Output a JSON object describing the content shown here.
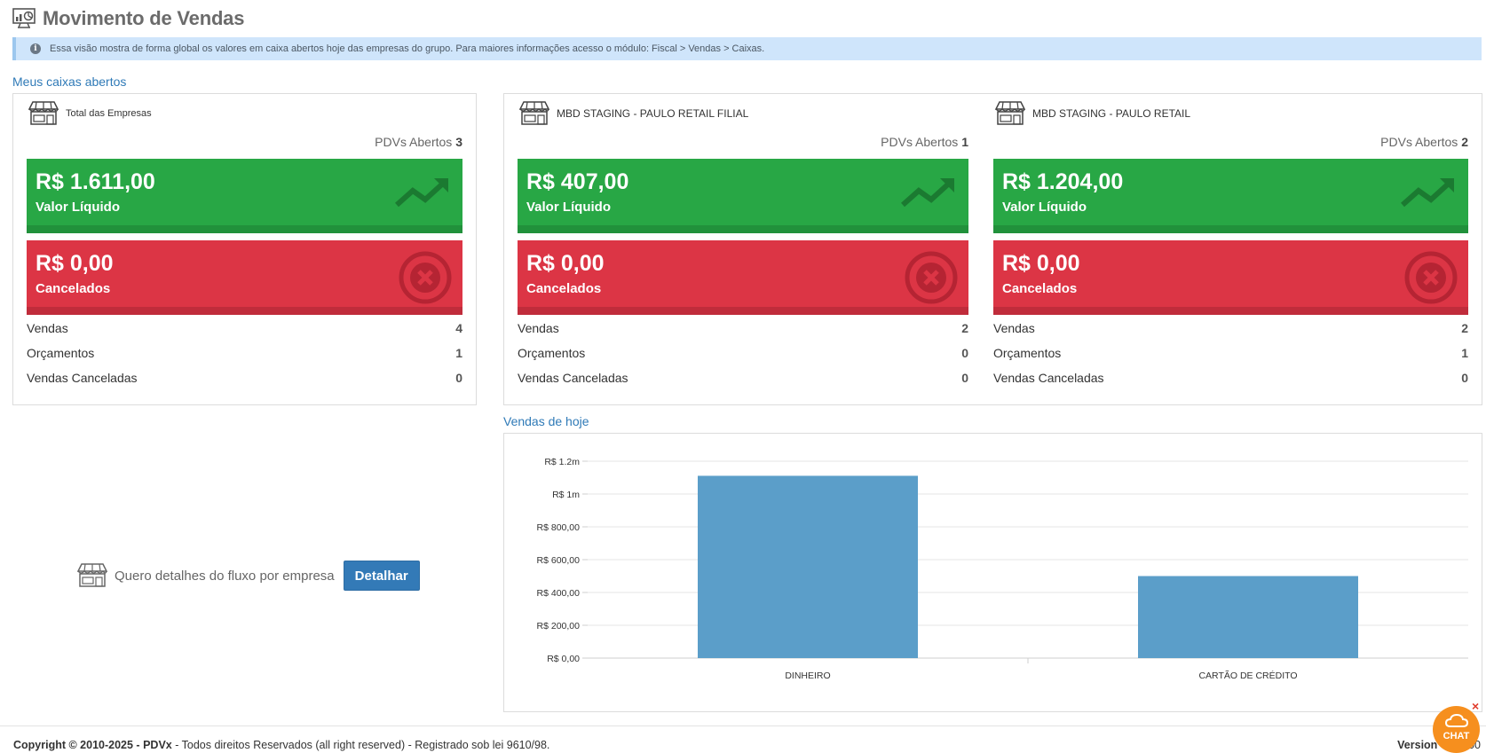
{
  "page": {
    "title": "Movimento de Vendas",
    "info": "Essa visão mostra de forma global os valores em caixa abertos hoje das empresas do grupo. Para maiores informações acesso o módulo: Fiscal > Vendas > Caixas."
  },
  "sections": {
    "caixas_title": "Meus caixas abertos",
    "vendas_hoje_title": "Vendas de hoje"
  },
  "stores": [
    {
      "name": "Total das Empresas",
      "pdv_label": "PDVs Abertos",
      "pdv_count": "3",
      "liquido_value": "R$ 1.611,00",
      "liquido_label": "Valor Líquido",
      "cancelados_value": "R$ 0,00",
      "cancelados_label": "Cancelados",
      "stats": [
        {
          "label": "Vendas",
          "value": "4"
        },
        {
          "label": "Orçamentos",
          "value": "1"
        },
        {
          "label": "Vendas Canceladas",
          "value": "0"
        }
      ]
    },
    {
      "name": "MBD STAGING - PAULO RETAIL FILIAL",
      "pdv_label": "PDVs Abertos",
      "pdv_count": "1",
      "liquido_value": "R$ 407,00",
      "liquido_label": "Valor Líquido",
      "cancelados_value": "R$ 0,00",
      "cancelados_label": "Cancelados",
      "stats": [
        {
          "label": "Vendas",
          "value": "2"
        },
        {
          "label": "Orçamentos",
          "value": "0"
        },
        {
          "label": "Vendas Canceladas",
          "value": "0"
        }
      ]
    },
    {
      "name": "MBD STAGING - PAULO RETAIL",
      "pdv_label": "PDVs Abertos",
      "pdv_count": "2",
      "liquido_value": "R$ 1.204,00",
      "liquido_label": "Valor Líquido",
      "cancelados_value": "R$ 0,00",
      "cancelados_label": "Cancelados",
      "stats": [
        {
          "label": "Vendas",
          "value": "2"
        },
        {
          "label": "Orçamentos",
          "value": "1"
        },
        {
          "label": "Vendas Canceladas",
          "value": "0"
        }
      ]
    }
  ],
  "detail": {
    "text": "Quero detalhes do fluxo por empresa",
    "button": "Detalhar"
  },
  "chart_data": {
    "type": "bar",
    "categories": [
      "DINHEIRO",
      "CARTÃO DE CRÉDITO"
    ],
    "values": [
      1111,
      500
    ],
    "ylim": [
      0,
      1200
    ],
    "yticks": [
      {
        "value": 0,
        "label": "R$ 0,00"
      },
      {
        "value": 200,
        "label": "R$ 200,00"
      },
      {
        "value": 400,
        "label": "R$ 400,00"
      },
      {
        "value": 600,
        "label": "R$ 600,00"
      },
      {
        "value": 800,
        "label": "R$ 800,00"
      },
      {
        "value": 1000,
        "label": "R$ 1m"
      },
      {
        "value": 1200,
        "label": "R$ 1.2m"
      }
    ],
    "bar_color": "#5b9ec9",
    "grid": true
  },
  "footer": {
    "copyright_prefix": "Copyright © 2010-2025 - ",
    "brand": "PDVx",
    "copyright_rest": " - Todos direitos Reservados (all right reserved) - Registrado sob lei 9610/98.",
    "version_label": "Version",
    "version_value": "001.800"
  },
  "chat": {
    "label": "CHAT",
    "close": "×"
  },
  "colors": {
    "green": "#28a745",
    "red": "#dc3545",
    "link_blue": "#2f7ab7",
    "info_bg": "#cfe5fb",
    "chat_orange": "#f68f1e"
  },
  "icons": [
    "monitor-chart-icon",
    "info-icon",
    "store-icon",
    "trend-up-icon",
    "cancel-circle-icon",
    "chat-cloud-icon",
    "close-icon"
  ]
}
